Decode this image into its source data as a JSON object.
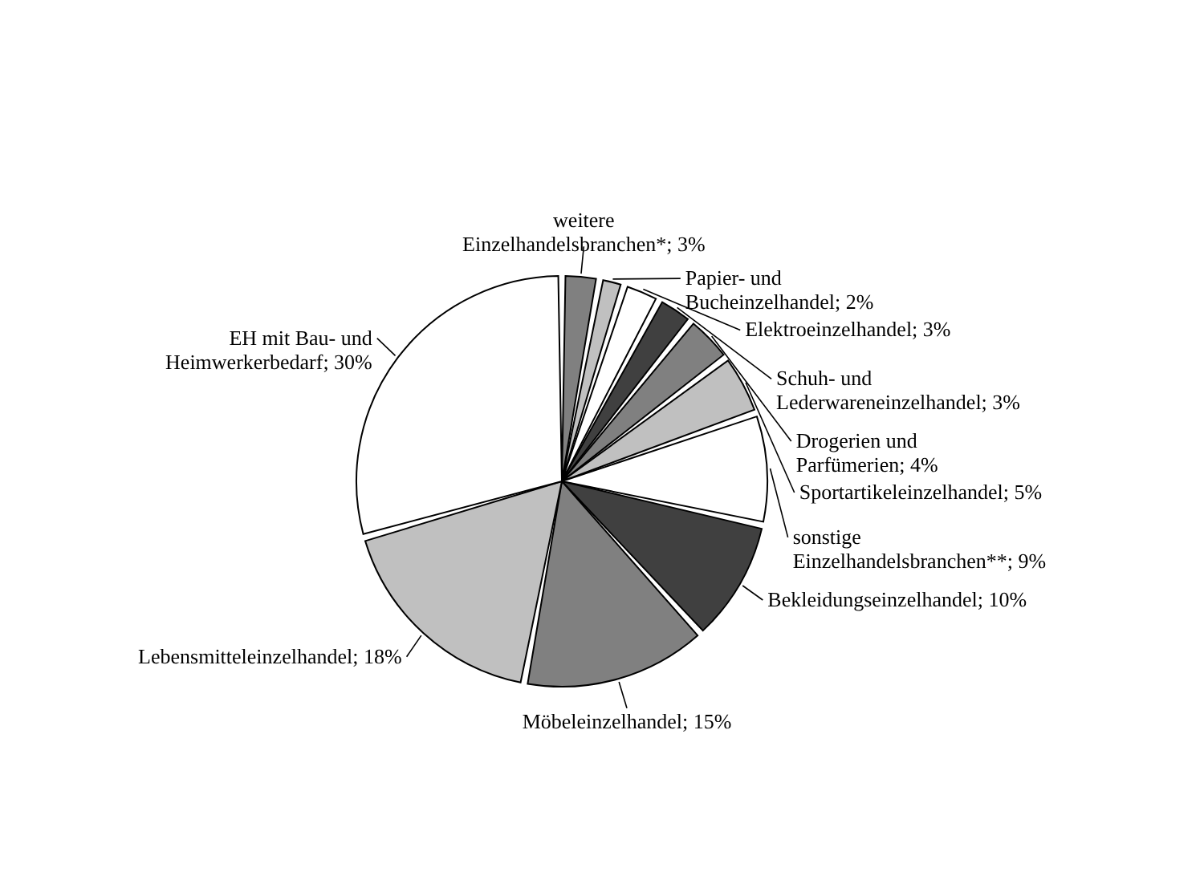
{
  "chart_data": {
    "type": "pie",
    "categories": [
      "weitere Einzelhandelsbranchen*",
      "Papier- und Bucheinzelhandel",
      "Elektroeinzelhandel",
      "Schuh- und Lederwareneinzelhandel",
      "Drogerien und Parfümerien",
      "Sportartikeleinzelhandel",
      "sonstige Einzelhandelsbranchen**",
      "Bekleidungseinzelhandel",
      "Möbeleinzelhandel",
      "Lebensmitteleinzelhandel",
      "EH mit Bau- und Heimwerkerbedarf"
    ],
    "values": [
      3,
      2,
      3,
      3,
      4,
      5,
      9,
      10,
      15,
      18,
      30
    ],
    "value_labels": [
      "3%",
      "2%",
      "3%",
      "3%",
      "4%",
      "5%",
      "9%",
      "10%",
      "15%",
      "18%",
      "30%"
    ],
    "colors": [
      "#808080",
      "#c0c0c0",
      "#ffffff",
      "#404040",
      "#808080",
      "#c0c0c0",
      "#ffffff",
      "#404040",
      "#808080",
      "#c0c0c0",
      "#ffffff"
    ]
  }
}
